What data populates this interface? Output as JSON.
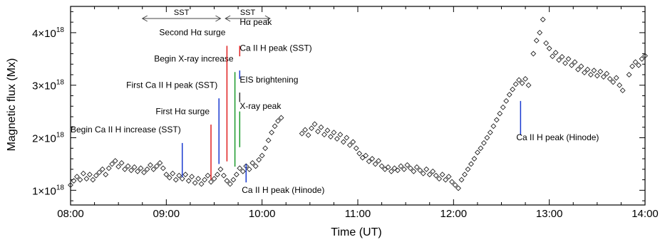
{
  "chart_data": {
    "type": "scatter",
    "xlabel": "Time (UT)",
    "ylabel": "Magnetic flux (Mx)",
    "xlim": [
      "08:00",
      "14:00"
    ],
    "ylim": [
      7.2e+17,
      4.5e+18
    ],
    "x_ticks": [
      "08:00",
      "09:00",
      "10:00",
      "11:00",
      "12:00",
      "13:00",
      "14:00"
    ],
    "y_ticks": [
      {
        "value": 1e+18,
        "mantissa": "1",
        "exponent": "18"
      },
      {
        "value": 2e+18,
        "mantissa": "2",
        "exponent": "18"
      },
      {
        "value": 3e+18,
        "mantissa": "3",
        "exponent": "18"
      },
      {
        "value": 4e+18,
        "mantissa": "4",
        "exponent": "18"
      }
    ],
    "marker": "diamond-open",
    "series": [
      {
        "points": [
          [
            "08:00",
            1.1e+18
          ],
          [
            "08:02",
            1.18e+18
          ],
          [
            "08:04",
            1.26e+18
          ],
          [
            "08:06",
            1.2e+18
          ],
          [
            "08:08",
            1.32e+18
          ],
          [
            "08:10",
            1.22e+18
          ],
          [
            "08:12",
            1.3e+18
          ],
          [
            "08:14",
            1.2e+18
          ],
          [
            "08:16",
            1.28e+18
          ],
          [
            "08:18",
            1.34e+18
          ],
          [
            "08:20",
            1.4e+18
          ],
          [
            "08:22",
            1.3e+18
          ],
          [
            "08:24",
            1.42e+18
          ],
          [
            "08:26",
            1.5e+18
          ],
          [
            "08:28",
            1.56e+18
          ],
          [
            "08:30",
            1.45e+18
          ],
          [
            "08:32",
            1.52e+18
          ],
          [
            "08:34",
            1.4e+18
          ],
          [
            "08:36",
            1.46e+18
          ],
          [
            "08:38",
            1.38e+18
          ],
          [
            "08:40",
            1.44e+18
          ],
          [
            "08:42",
            1.36e+18
          ],
          [
            "08:44",
            1.42e+18
          ],
          [
            "08:46",
            1.34e+18
          ],
          [
            "08:48",
            1.4e+18
          ],
          [
            "08:50",
            1.48e+18
          ],
          [
            "08:52",
            1.4e+18
          ],
          [
            "08:54",
            1.46e+18
          ],
          [
            "08:56",
            1.52e+18
          ],
          [
            "08:58",
            1.42e+18
          ],
          [
            "09:00",
            1.3e+18
          ],
          [
            "09:02",
            1.24e+18
          ],
          [
            "09:04",
            1.32e+18
          ],
          [
            "09:06",
            1.2e+18
          ],
          [
            "09:08",
            1.28e+18
          ],
          [
            "09:10",
            1.22e+18
          ],
          [
            "09:12",
            1.3e+18
          ],
          [
            "09:14",
            1.18e+18
          ],
          [
            "09:16",
            1.26e+18
          ],
          [
            "09:18",
            1.14e+18
          ],
          [
            "09:20",
            1.22e+18
          ],
          [
            "09:22",
            1.12e+18
          ],
          [
            "09:24",
            1.2e+18
          ],
          [
            "09:26",
            1.28e+18
          ],
          [
            "09:28",
            1.16e+18
          ],
          [
            "09:30",
            1.22e+18
          ],
          [
            "09:32",
            1.3e+18
          ],
          [
            "09:34",
            1.4e+18
          ],
          [
            "09:36",
            1.28e+18
          ],
          [
            "09:38",
            1.18e+18
          ],
          [
            "09:40",
            1.12e+18
          ],
          [
            "09:42",
            1.2e+18
          ],
          [
            "09:44",
            1.3e+18
          ],
          [
            "09:46",
            1.42e+18
          ],
          [
            "09:48",
            1.36e+18
          ],
          [
            "09:50",
            1.46e+18
          ],
          [
            "09:52",
            1.4e+18
          ],
          [
            "09:54",
            1.52e+18
          ],
          [
            "09:56",
            1.46e+18
          ],
          [
            "09:58",
            1.58e+18
          ],
          [
            "10:00",
            1.66e+18
          ],
          [
            "10:02",
            1.8e+18
          ],
          [
            "10:04",
            1.95e+18
          ],
          [
            "10:06",
            2.1e+18
          ],
          [
            "10:08",
            2.22e+18
          ],
          [
            "10:10",
            2.32e+18
          ],
          [
            "10:12",
            2.38e+18
          ],
          [
            "10:25",
            2.08e+18
          ],
          [
            "10:27",
            2.15e+18
          ],
          [
            "10:29",
            2.05e+18
          ],
          [
            "10:31",
            2.18e+18
          ],
          [
            "10:33",
            2.26e+18
          ],
          [
            "10:35",
            2.12e+18
          ],
          [
            "10:37",
            2.2e+18
          ],
          [
            "10:39",
            2.06e+18
          ],
          [
            "10:41",
            2.14e+18
          ],
          [
            "10:43",
            2.02e+18
          ],
          [
            "10:45",
            2.1e+18
          ],
          [
            "10:47",
            1.98e+18
          ],
          [
            "10:49",
            2.06e+18
          ],
          [
            "10:51",
            1.92e+18
          ],
          [
            "10:53",
            2e+18
          ],
          [
            "10:55",
            1.86e+18
          ],
          [
            "10:57",
            1.92e+18
          ],
          [
            "10:59",
            1.8e+18
          ],
          [
            "11:01",
            1.7e+18
          ],
          [
            "11:03",
            1.62e+18
          ],
          [
            "11:05",
            1.66e+18
          ],
          [
            "11:07",
            1.55e+18
          ],
          [
            "11:09",
            1.6e+18
          ],
          [
            "11:11",
            1.5e+18
          ],
          [
            "11:13",
            1.56e+18
          ],
          [
            "11:15",
            1.46e+18
          ],
          [
            "11:17",
            1.4e+18
          ],
          [
            "11:19",
            1.44e+18
          ],
          [
            "11:21",
            1.36e+18
          ],
          [
            "11:23",
            1.42e+18
          ],
          [
            "11:25",
            1.38e+18
          ],
          [
            "11:27",
            1.46e+18
          ],
          [
            "11:29",
            1.4e+18
          ],
          [
            "11:31",
            1.48e+18
          ],
          [
            "11:33",
            1.42e+18
          ],
          [
            "11:35",
            1.36e+18
          ],
          [
            "11:37",
            1.44e+18
          ],
          [
            "11:39",
            1.38e+18
          ],
          [
            "11:41",
            1.32e+18
          ],
          [
            "11:43",
            1.4e+18
          ],
          [
            "11:45",
            1.3e+18
          ],
          [
            "11:47",
            1.36e+18
          ],
          [
            "11:49",
            1.28e+18
          ],
          [
            "11:51",
            1.22e+18
          ],
          [
            "11:53",
            1.3e+18
          ],
          [
            "11:55",
            1.2e+18
          ],
          [
            "11:57",
            1.26e+18
          ],
          [
            "11:59",
            1.16e+18
          ],
          [
            "12:01",
            1.1e+18
          ],
          [
            "12:03",
            1.04e+18
          ],
          [
            "12:05",
            1.2e+18
          ],
          [
            "12:07",
            1.3e+18
          ],
          [
            "12:09",
            1.4e+18
          ],
          [
            "12:11",
            1.5e+18
          ],
          [
            "12:13",
            1.6e+18
          ],
          [
            "12:15",
            1.72e+18
          ],
          [
            "12:17",
            1.8e+18
          ],
          [
            "12:19",
            1.9e+18
          ],
          [
            "12:21",
            2e+18
          ],
          [
            "12:23",
            2.1e+18
          ],
          [
            "12:25",
            2.22e+18
          ],
          [
            "12:27",
            2.34e+18
          ],
          [
            "12:29",
            2.46e+18
          ],
          [
            "12:31",
            2.58e+18
          ],
          [
            "12:33",
            2.7e+18
          ],
          [
            "12:35",
            2.82e+18
          ],
          [
            "12:37",
            2.92e+18
          ],
          [
            "12:39",
            3.02e+18
          ],
          [
            "12:41",
            3.1e+18
          ],
          [
            "12:43",
            3.04e+18
          ],
          [
            "12:45",
            3.12e+18
          ],
          [
            "12:47",
            3e+18
          ],
          [
            "12:50",
            3.6e+18
          ],
          [
            "12:52",
            3.85e+18
          ],
          [
            "12:54",
            4e+18
          ],
          [
            "12:56",
            4.25e+18
          ],
          [
            "12:58",
            3.8e+18
          ],
          [
            "13:00",
            3.7e+18
          ],
          [
            "13:02",
            3.55e+18
          ],
          [
            "13:04",
            3.62e+18
          ],
          [
            "13:06",
            3.48e+18
          ],
          [
            "13:08",
            3.54e+18
          ],
          [
            "13:10",
            3.42e+18
          ],
          [
            "13:12",
            3.5e+18
          ],
          [
            "13:14",
            3.38e+18
          ],
          [
            "13:16",
            3.44e+18
          ],
          [
            "13:18",
            3.3e+18
          ],
          [
            "13:20",
            3.36e+18
          ],
          [
            "13:22",
            3.24e+18
          ],
          [
            "13:24",
            3.3e+18
          ],
          [
            "13:26",
            3.2e+18
          ],
          [
            "13:28",
            3.28e+18
          ],
          [
            "13:30",
            3.18e+18
          ],
          [
            "13:32",
            3.26e+18
          ],
          [
            "13:34",
            3.16e+18
          ],
          [
            "13:36",
            3.22e+18
          ],
          [
            "13:38",
            3.12e+18
          ],
          [
            "13:40",
            3.06e+18
          ],
          [
            "13:42",
            3.14e+18
          ],
          [
            "13:44",
            3e+18
          ],
          [
            "13:46",
            2.9e+18
          ],
          [
            "13:50",
            3.2e+18
          ],
          [
            "13:52",
            3.36e+18
          ],
          [
            "13:54",
            3.44e+18
          ],
          [
            "13:56",
            3.38e+18
          ],
          [
            "13:58",
            3.5e+18
          ],
          [
            "14:00",
            3.56e+18
          ]
        ]
      }
    ],
    "sst_ranges": [
      {
        "label": "SST",
        "start": "08:45",
        "end": "09:34"
      },
      {
        "label": "SST",
        "start": "09:37",
        "end": "10:05"
      }
    ],
    "events": [
      {
        "time": "09:10",
        "color": "#1a3ad0",
        "y_from": 1.25e+18,
        "y_to": 1.9e+18,
        "label": "Begin Ca II H increase (SST)",
        "label_y": 2.1e+18,
        "anchor": "end",
        "dx": -2
      },
      {
        "time": "09:28",
        "color": "#e02020",
        "y_from": 1.2e+18,
        "y_to": 2.25e+18,
        "label": "First Hα surge",
        "label_y": 2.45e+18,
        "anchor": "end",
        "dx": -2
      },
      {
        "time": "09:33",
        "color": "#1a3ad0",
        "y_from": 1.5e+18,
        "y_to": 2.75e+18,
        "label": "First Ca II H peak (SST)",
        "label_y": 2.95e+18,
        "anchor": "end",
        "dx": -2
      },
      {
        "time": "09:43",
        "color": "#1a9a2a",
        "y_from": 1.45e+18,
        "y_to": 3.25e+18,
        "label": "Begin X-ray increase",
        "label_y": 3.45e+18,
        "anchor": "end",
        "dx": -2
      },
      {
        "time": "09:38",
        "color": "#e02020",
        "y_from": 1.55e+18,
        "y_to": 3.75e+18,
        "label": "Second Hα surge",
        "label_y": 3.95e+18,
        "anchor": "end",
        "dx": -2
      },
      {
        "time": "09:46",
        "color": "#e02020",
        "y_from": 3.55e+18,
        "y_to": 3.75e+18,
        "label": "Hα peak",
        "label_y": 4.15e+18,
        "anchor": "start",
        "dx": 0
      },
      {
        "time": "09:46",
        "color": "#1a3ad0",
        "y_from": 3.12e+18,
        "y_to": 3.28e+18,
        "label": "Ca II H peak (SST)",
        "label_y": 3.65e+18,
        "anchor": "start",
        "dx": 0
      },
      {
        "time": "09:46",
        "color": "#333333",
        "y_from": 2.68e+18,
        "y_to": 2.86e+18,
        "label": "EIS brightening",
        "label_y": 3.05e+18,
        "anchor": "start",
        "dx": 0
      },
      {
        "time": "09:46",
        "color": "#1a9a2a",
        "y_from": 1.82e+18,
        "y_to": 2.5e+18,
        "label": "X-ray peak",
        "label_y": 2.55e+18,
        "anchor": "start",
        "dx": 0
      },
      {
        "time": "09:50",
        "color": "#1a3ad0",
        "y_from": 1.15e+18,
        "y_to": 1.5e+18,
        "label": "Ca II H peak (Hinode)",
        "label_y": 9.5e+17,
        "anchor": "start",
        "dx": -6
      },
      {
        "time": "12:42",
        "color": "#1a3ad0",
        "y_from": 2.05e+18,
        "y_to": 2.7e+18,
        "label": "Ca II H peak (Hinode)",
        "label_y": 1.95e+18,
        "anchor": "start",
        "dx": -6
      }
    ]
  }
}
